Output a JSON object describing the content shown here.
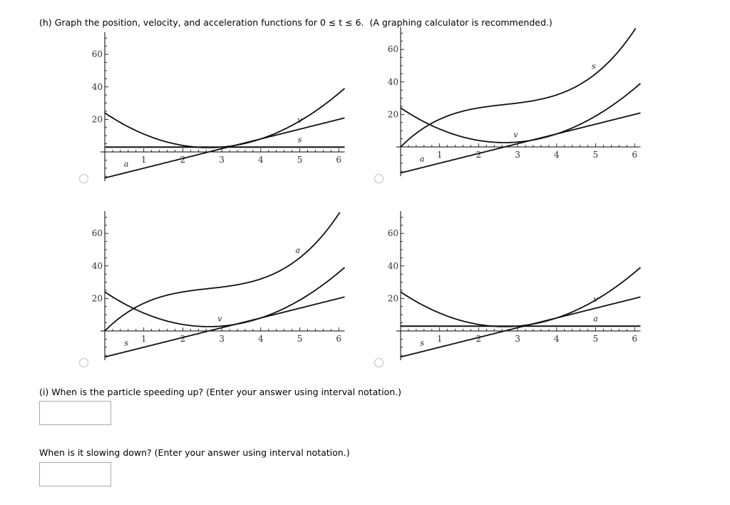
{
  "part_h": {
    "prompt_prefix": "(h) Graph the position, velocity, and acceleration functions for ",
    "range": "0 ≤ t ≤ 6.",
    "prompt_suffix": "  (A graphing calculator is recommended.)"
  },
  "options": [
    {
      "id": "option-1",
      "curves": {
        "cubic": "",
        "parabola": "v",
        "line": "a",
        "flat": "s"
      }
    },
    {
      "id": "option-2",
      "curves": {
        "cubic": "s",
        "parabola": "v",
        "line": "a",
        "flat": ""
      }
    },
    {
      "id": "option-3",
      "curves": {
        "cubic": "a",
        "parabola": "v",
        "line": "s",
        "flat": ""
      }
    },
    {
      "id": "option-4",
      "curves": {
        "cubic": "",
        "parabola": "v",
        "line": "s",
        "flat": "a"
      }
    }
  ],
  "axis": {
    "x_ticks": [
      "1",
      "2",
      "3",
      "4",
      "5",
      "6"
    ],
    "y_ticks": [
      "20",
      "40",
      "60"
    ]
  },
  "part_i": {
    "speeding_up_label": "(i) When is the particle speeding up? (Enter your answer using interval notation.)",
    "speeding_up_value": "",
    "slowing_down_label": "When is it slowing down? (Enter your answer using interval notation.)",
    "slowing_down_value": ""
  },
  "chart_data": [
    {
      "type": "line",
      "title": "Option 1",
      "xlim": [
        0,
        6
      ],
      "ylim": [
        -16,
        72
      ],
      "x_ticks": [
        1,
        2,
        3,
        4,
        5,
        6
      ],
      "y_ticks": [
        20,
        40,
        60
      ],
      "series": [
        {
          "name": "v",
          "x": [
            0,
            1,
            2,
            3,
            4,
            5,
            6
          ],
          "values": [
            24,
            11,
            4,
            3,
            8,
            19,
            36
          ]
        },
        {
          "name": "a",
          "x": [
            0,
            6
          ],
          "values": [
            -16,
            20
          ]
        },
        {
          "name": "s",
          "x": [
            0,
            6
          ],
          "values": [
            3,
            3
          ]
        }
      ]
    },
    {
      "type": "line",
      "title": "Option 2",
      "xlim": [
        0,
        6
      ],
      "ylim": [
        -16,
        72
      ],
      "x_ticks": [
        1,
        2,
        3,
        4,
        5,
        6
      ],
      "y_ticks": [
        20,
        40,
        60
      ],
      "series": [
        {
          "name": "s",
          "x": [
            0,
            1,
            2,
            3,
            4,
            5,
            6
          ],
          "values": [
            0,
            17,
            24,
            27,
            32,
            45,
            72
          ]
        },
        {
          "name": "v",
          "x": [
            0,
            1,
            2,
            3,
            4,
            5,
            6
          ],
          "values": [
            24,
            11,
            4,
            3,
            8,
            19,
            36
          ]
        },
        {
          "name": "a",
          "x": [
            0,
            6
          ],
          "values": [
            -16,
            20
          ]
        }
      ]
    },
    {
      "type": "line",
      "title": "Option 3",
      "xlim": [
        0,
        6
      ],
      "ylim": [
        -16,
        72
      ],
      "x_ticks": [
        1,
        2,
        3,
        4,
        5,
        6
      ],
      "y_ticks": [
        20,
        40,
        60
      ],
      "series": [
        {
          "name": "a",
          "x": [
            0,
            1,
            2,
            3,
            4,
            5,
            6
          ],
          "values": [
            0,
            17,
            24,
            27,
            32,
            45,
            72
          ]
        },
        {
          "name": "v",
          "x": [
            0,
            1,
            2,
            3,
            4,
            5,
            6
          ],
          "values": [
            24,
            11,
            4,
            3,
            8,
            19,
            36
          ]
        },
        {
          "name": "s",
          "x": [
            0,
            6
          ],
          "values": [
            -16,
            20
          ]
        }
      ]
    },
    {
      "type": "line",
      "title": "Option 4",
      "xlim": [
        0,
        6
      ],
      "ylim": [
        -16,
        72
      ],
      "x_ticks": [
        1,
        2,
        3,
        4,
        5,
        6
      ],
      "y_ticks": [
        20,
        40,
        60
      ],
      "series": [
        {
          "name": "v",
          "x": [
            0,
            1,
            2,
            3,
            4,
            5,
            6
          ],
          "values": [
            24,
            11,
            4,
            3,
            8,
            19,
            36
          ]
        },
        {
          "name": "s",
          "x": [
            0,
            6
          ],
          "values": [
            -16,
            20
          ]
        },
        {
          "name": "a",
          "x": [
            0,
            6
          ],
          "values": [
            3,
            3
          ]
        }
      ]
    }
  ]
}
